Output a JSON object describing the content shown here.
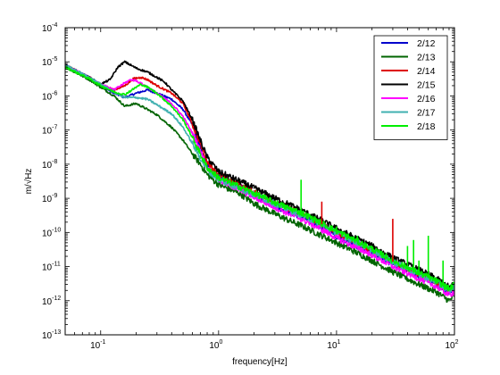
{
  "chart_data": {
    "type": "line",
    "title": "",
    "xlabel": "frequency[Hz]",
    "ylabel": "m/√Hz",
    "xscale": "log",
    "yscale": "log",
    "xlim": [
      0.05,
      100
    ],
    "ylim": [
      1e-13,
      0.0001
    ],
    "grid": false,
    "legend_position": "top-right",
    "x_ticks": [
      {
        "value": 0.1,
        "base": "10",
        "exp": "-1"
      },
      {
        "value": 1,
        "base": "10",
        "exp": "0"
      },
      {
        "value": 10,
        "base": "10",
        "exp": "1"
      },
      {
        "value": 100,
        "base": "10",
        "exp": "2"
      }
    ],
    "y_ticks": [
      {
        "value": 1e-13,
        "base": "10",
        "exp": "-13"
      },
      {
        "value": 1e-12,
        "base": "10",
        "exp": "-12"
      },
      {
        "value": 1e-11,
        "base": "10",
        "exp": "-11"
      },
      {
        "value": 1e-10,
        "base": "10",
        "exp": "-10"
      },
      {
        "value": 1e-09,
        "base": "10",
        "exp": "-9"
      },
      {
        "value": 1e-08,
        "base": "10",
        "exp": "-8"
      },
      {
        "value": 1e-07,
        "base": "10",
        "exp": "-7"
      },
      {
        "value": 1e-06,
        "base": "10",
        "exp": "-6"
      },
      {
        "value": 1e-05,
        "base": "10",
        "exp": "-5"
      },
      {
        "value": 0.0001,
        "base": "10",
        "exp": "-4"
      }
    ],
    "series": [
      {
        "name": "2/12",
        "color": "#0000cc",
        "x": [
          0.05,
          0.08,
          0.1,
          0.13,
          0.16,
          0.2,
          0.25,
          0.3,
          0.4,
          0.5,
          0.6,
          0.7,
          0.8,
          1,
          1.5,
          2,
          3,
          4,
          5,
          7,
          10,
          15,
          20,
          30,
          50,
          70,
          90,
          100
        ],
        "y": [
          8e-06,
          3.5e-06,
          2e-06,
          1.2e-06,
          9e-07,
          1.2e-06,
          1.5e-06,
          1.2e-06,
          8e-07,
          4e-07,
          1.4e-07,
          3e-08,
          1e-08,
          4.5e-09,
          2.2e-09,
          1.2e-09,
          6e-10,
          4e-10,
          3e-10,
          1.6e-10,
          8e-11,
          4e-11,
          2.5e-11,
          1.2e-11,
          5e-12,
          3e-12,
          1.6e-12,
          2e-12
        ]
      },
      {
        "name": "2/13",
        "color": "#006400",
        "x": [
          0.05,
          0.08,
          0.1,
          0.13,
          0.16,
          0.2,
          0.25,
          0.3,
          0.4,
          0.5,
          0.6,
          0.7,
          0.8,
          1,
          1.5,
          2,
          3,
          4,
          5,
          7,
          10,
          15,
          20,
          30,
          50,
          70,
          90,
          100
        ],
        "y": [
          7e-06,
          3e-06,
          1.8e-06,
          1e-06,
          5e-07,
          6e-07,
          4e-07,
          2.8e-07,
          1.2e-07,
          5e-08,
          2e-08,
          1e-08,
          5e-09,
          2.5e-09,
          1.4e-09,
          7e-10,
          3.5e-10,
          2.2e-10,
          1.6e-10,
          9e-11,
          5e-11,
          2.5e-11,
          1.5e-11,
          7e-12,
          3e-12,
          1.8e-12,
          1e-12,
          1.4e-12
        ]
      },
      {
        "name": "2/14",
        "color": "#dd0000",
        "x": [
          0.05,
          0.08,
          0.1,
          0.13,
          0.16,
          0.19,
          0.22,
          0.25,
          0.3,
          0.4,
          0.5,
          0.6,
          0.7,
          0.8,
          1,
          1.5,
          2,
          3,
          4,
          5,
          7,
          10,
          15,
          20,
          30,
          50,
          70,
          90,
          100
        ],
        "y": [
          8e-06,
          3.5e-06,
          2.2e-06,
          1.5e-06,
          2e-06,
          3.2e-06,
          3.5e-06,
          3e-06,
          2e-06,
          1.2e-06,
          6e-07,
          1.5e-07,
          4e-08,
          1.2e-08,
          5e-09,
          2.5e-09,
          1.5e-09,
          8e-10,
          5e-10,
          3.8e-10,
          2e-10,
          1e-10,
          5e-11,
          3e-11,
          1.4e-11,
          6e-12,
          3.5e-12,
          2e-12,
          2.5e-12
        ]
      },
      {
        "name": "2/15",
        "color": "#000000",
        "x": [
          0.05,
          0.08,
          0.1,
          0.12,
          0.14,
          0.16,
          0.18,
          0.2,
          0.25,
          0.3,
          0.35,
          0.4,
          0.5,
          0.6,
          0.7,
          0.8,
          1,
          1.5,
          2,
          3,
          4,
          5,
          7,
          10,
          15,
          20,
          30,
          50,
          70,
          90,
          100
        ],
        "y": [
          8e-06,
          3.5e-06,
          2.2e-06,
          3e-06,
          7e-06,
          1e-05,
          8e-06,
          6.5e-06,
          5e-06,
          3.5e-06,
          2.5e-06,
          1.5e-06,
          7e-07,
          2e-07,
          5e-08,
          1.6e-08,
          6e-09,
          3.2e-09,
          2e-09,
          1e-09,
          6.5e-10,
          4.5e-10,
          2.5e-10,
          1.3e-10,
          6.5e-11,
          4e-11,
          1.8e-11,
          8e-12,
          4.5e-12,
          2.5e-12,
          3e-12
        ]
      },
      {
        "name": "2/16",
        "color": "#ff00ff",
        "x": [
          0.05,
          0.08,
          0.1,
          0.13,
          0.16,
          0.18,
          0.2,
          0.25,
          0.3,
          0.4,
          0.5,
          0.6,
          0.7,
          0.8,
          1,
          1.5,
          2,
          3,
          4,
          5,
          7,
          10,
          15,
          20,
          30,
          50,
          70,
          90,
          100
        ],
        "y": [
          8e-06,
          3.5e-06,
          2.2e-06,
          1.5e-06,
          2.4e-06,
          3e-06,
          2.8e-06,
          1.8e-06,
          1.2e-06,
          6e-07,
          2.5e-07,
          8e-08,
          2.5e-08,
          8e-09,
          3.5e-09,
          1.8e-09,
          1.1e-09,
          5.5e-10,
          3.5e-10,
          2.5e-10,
          1.4e-10,
          7e-11,
          3.5e-11,
          2.2e-11,
          1e-11,
          4.5e-12,
          2.6e-12,
          1.5e-12,
          1.8e-12
        ]
      },
      {
        "name": "2/17",
        "color": "#40b0b0",
        "x": [
          0.05,
          0.08,
          0.1,
          0.13,
          0.16,
          0.2,
          0.25,
          0.3,
          0.4,
          0.5,
          0.6,
          0.7,
          0.8,
          1,
          1.5,
          2,
          3,
          4,
          5,
          7,
          10,
          15,
          20,
          30,
          50,
          70,
          90,
          100
        ],
        "y": [
          8e-06,
          3.5e-06,
          2.2e-06,
          1.3e-06,
          9e-07,
          9e-07,
          8e-07,
          5.5e-07,
          3e-07,
          1.2e-07,
          4e-08,
          1.5e-08,
          7e-09,
          3.5e-09,
          2e-09,
          1.3e-09,
          7e-10,
          4.5e-10,
          3.3e-10,
          1.9e-10,
          1e-10,
          5e-11,
          3e-11,
          1.4e-11,
          6e-12,
          3.5e-12,
          2e-12,
          2.5e-12
        ]
      },
      {
        "name": "2/18",
        "color": "#00ee00",
        "x": [
          0.05,
          0.08,
          0.1,
          0.13,
          0.16,
          0.2,
          0.22,
          0.25,
          0.3,
          0.4,
          0.5,
          0.6,
          0.7,
          0.8,
          1,
          1.5,
          2,
          3,
          4,
          5,
          7,
          10,
          15,
          20,
          30,
          50,
          70,
          90,
          100
        ],
        "y": [
          7e-06,
          3.2e-06,
          2e-06,
          1.3e-06,
          1.1e-06,
          1.8e-06,
          2.2e-06,
          1.8e-06,
          1.2e-06,
          5e-07,
          2e-07,
          6e-08,
          2e-08,
          8e-09,
          4e-09,
          2.2e-09,
          1.4e-09,
          7.5e-10,
          5e-10,
          3.8e-10,
          2.1e-10,
          1.1e-10,
          5.5e-11,
          3.3e-11,
          1.5e-11,
          6.5e-12,
          3.8e-12,
          2.2e-12,
          3e-12
        ]
      }
    ],
    "spikes": [
      {
        "series": "2/14",
        "x": 30,
        "y": 2.5e-10
      },
      {
        "series": "2/14",
        "x": 7.5,
        "y": 8e-10
      },
      {
        "series": "2/18",
        "x": 5,
        "y": 3.5e-09
      },
      {
        "series": "2/18",
        "x": 10,
        "y": 1.5e-10
      },
      {
        "series": "2/18",
        "x": 15,
        "y": 8e-11
      },
      {
        "series": "2/18",
        "x": 40,
        "y": 4e-11
      },
      {
        "series": "2/18",
        "x": 45,
        "y": 6e-11
      },
      {
        "series": "2/18",
        "x": 50,
        "y": 1.5e-11
      },
      {
        "series": "2/18",
        "x": 60,
        "y": 8e-11
      },
      {
        "series": "2/18",
        "x": 80,
        "y": 1.5e-11
      }
    ]
  }
}
